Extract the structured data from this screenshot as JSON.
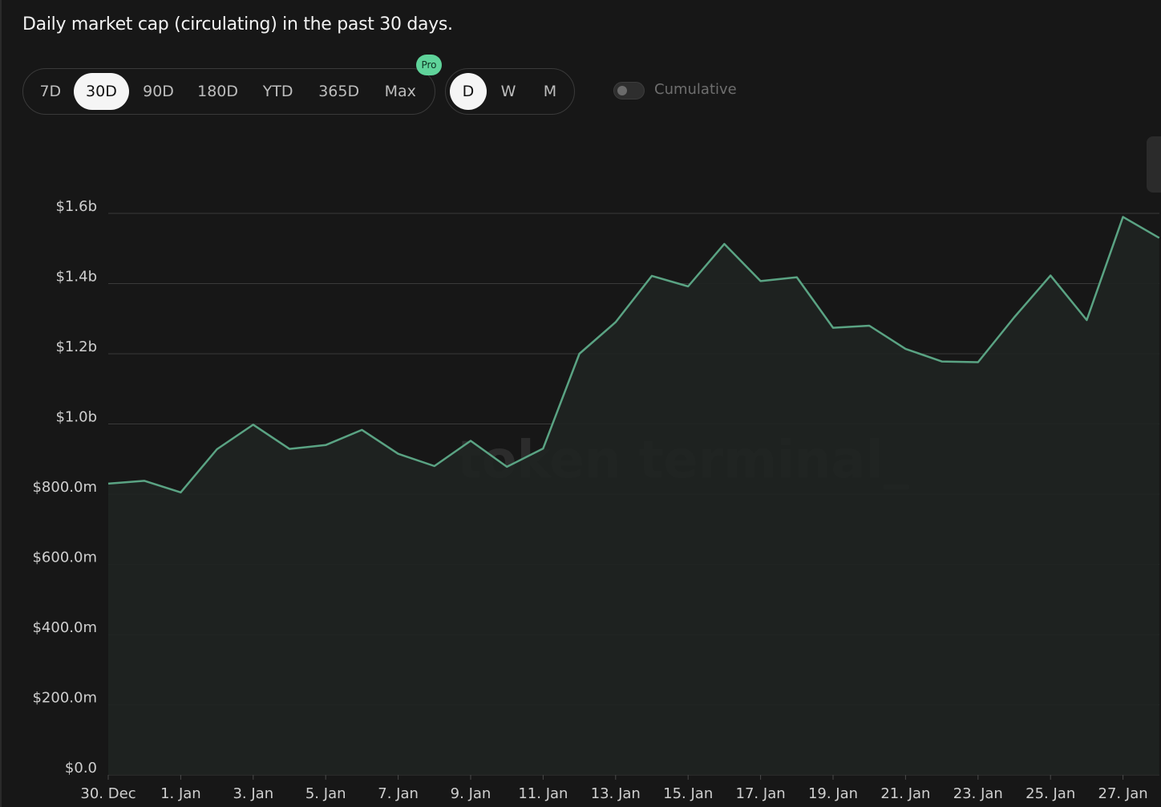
{
  "header": {
    "subtitle": "Daily market cap (circulating) in the past 30 days."
  },
  "range_buttons": [
    {
      "label": "7D",
      "active": false
    },
    {
      "label": "30D",
      "active": true
    },
    {
      "label": "90D",
      "active": false
    },
    {
      "label": "180D",
      "active": false
    },
    {
      "label": "YTD",
      "active": false
    },
    {
      "label": "365D",
      "active": false
    },
    {
      "label": "Max",
      "active": false
    }
  ],
  "pro_badge": "Pro",
  "granularity_buttons": [
    {
      "label": "D",
      "active": true
    },
    {
      "label": "W",
      "active": false
    },
    {
      "label": "M",
      "active": false
    }
  ],
  "cumulative": {
    "label": "Cumulative",
    "enabled": false
  },
  "watermark": "token terminal_",
  "colors": {
    "background": "#171717",
    "line": "#5aa383",
    "area": "#1f2421",
    "grid": "#3a3a3a",
    "pro_badge": "#5fd39a"
  },
  "chart_data": {
    "type": "area",
    "title": "",
    "xlabel": "",
    "ylabel": "",
    "ylim": [
      0,
      1600000000
    ],
    "y_ticks": [
      {
        "value": 0,
        "label": "$0.0"
      },
      {
        "value": 200000000,
        "label": "$200.0m"
      },
      {
        "value": 400000000,
        "label": "$400.0m"
      },
      {
        "value": 600000000,
        "label": "$600.0m"
      },
      {
        "value": 800000000,
        "label": "$800.0m"
      },
      {
        "value": 1000000000,
        "label": "$1.0b"
      },
      {
        "value": 1200000000,
        "label": "$1.2b"
      },
      {
        "value": 1400000000,
        "label": "$1.4b"
      },
      {
        "value": 1600000000,
        "label": "$1.6b"
      }
    ],
    "x_ticks": [
      "30. Dec",
      "1. Jan",
      "3. Jan",
      "5. Jan",
      "7. Jan",
      "9. Jan",
      "11. Jan",
      "13. Jan",
      "15. Jan",
      "17. Jan",
      "19. Jan",
      "21. Jan",
      "23. Jan",
      "25. Jan",
      "27. Jan"
    ],
    "grid": true,
    "series": [
      {
        "dates": [
          "30. Dec",
          "31. Dec",
          "1. Jan",
          "2. Jan",
          "3. Jan",
          "4. Jan",
          "5. Jan",
          "6. Jan",
          "7. Jan",
          "8. Jan",
          "9. Jan",
          "10. Jan",
          "11. Jan",
          "12. Jan",
          "13. Jan",
          "14. Jan",
          "15. Jan",
          "16. Jan",
          "17. Jan",
          "18. Jan",
          "19. Jan",
          "20. Jan",
          "21. Jan",
          "22. Jan",
          "23. Jan",
          "24. Jan",
          "25. Jan",
          "26. Jan",
          "27. Jan",
          "28. Jan"
        ],
        "values": [
          830000000,
          838000000,
          805000000,
          928000000,
          998000000,
          929000000,
          940000000,
          983000000,
          915000000,
          880000000,
          952000000,
          878000000,
          930000000,
          1200000000,
          1290000000,
          1422000000,
          1392000000,
          1513000000,
          1407000000,
          1418000000,
          1274000000,
          1280000000,
          1214000000,
          1178000000,
          1176000000,
          1304000000,
          1423000000,
          1296000000,
          1590000000,
          1530000000
        ]
      }
    ]
  }
}
